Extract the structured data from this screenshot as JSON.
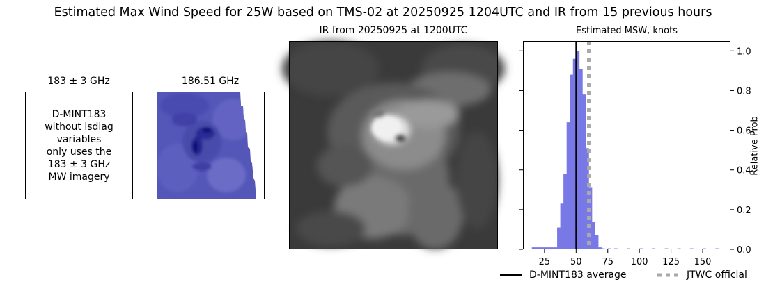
{
  "figure": {
    "title": "Estimated Max Wind Speed for 25W based on TMS-02 at 20250925 1204UTC and IR from 15 previous hours"
  },
  "panel_183": {
    "title": "183 ± 3 GHz",
    "note_lines": [
      "D-MINT183",
      "without lsdiag",
      "variables",
      "only uses the",
      "183 ± 3 GHz",
      "MW imagery"
    ]
  },
  "panel_186": {
    "title": "186.51 GHz"
  },
  "panel_ir": {
    "title": "IR from 20250925 at 1200UTC"
  },
  "chart_data": {
    "type": "bar",
    "title": "Estimated MSW, knots",
    "ylabel": "Relative Prob",
    "xlim": [
      8,
      172
    ],
    "ylim": [
      0,
      1.05
    ],
    "x_ticks": [
      25,
      50,
      75,
      100,
      125,
      150
    ],
    "y_ticks": [
      0.0,
      0.2,
      0.4,
      0.6,
      0.8,
      1.0
    ],
    "bin_width": 2.5,
    "bins": [
      {
        "x0": 15,
        "value": 0.01
      },
      {
        "x0": 17.5,
        "value": 0.01
      },
      {
        "x0": 20,
        "value": 0.01
      },
      {
        "x0": 22.5,
        "value": 0.01
      },
      {
        "x0": 25,
        "value": 0.01
      },
      {
        "x0": 27.5,
        "value": 0.01
      },
      {
        "x0": 30,
        "value": 0.01
      },
      {
        "x0": 32.5,
        "value": 0.01
      },
      {
        "x0": 35,
        "value": 0.11
      },
      {
        "x0": 37.5,
        "value": 0.23
      },
      {
        "x0": 40,
        "value": 0.38
      },
      {
        "x0": 42.5,
        "value": 0.64
      },
      {
        "x0": 45,
        "value": 0.88
      },
      {
        "x0": 47.5,
        "value": 0.96
      },
      {
        "x0": 50,
        "value": 1.0
      },
      {
        "x0": 52.5,
        "value": 0.91
      },
      {
        "x0": 55,
        "value": 0.78
      },
      {
        "x0": 57.5,
        "value": 0.51
      },
      {
        "x0": 60,
        "value": 0.31
      },
      {
        "x0": 62.5,
        "value": 0.14
      },
      {
        "x0": 65,
        "value": 0.07
      },
      {
        "x0": 67.5,
        "value": 0.01
      },
      {
        "x0": 70,
        "value": 0.005
      },
      {
        "x0": 75,
        "value": 0.005
      },
      {
        "x0": 80,
        "value": 0.005
      },
      {
        "x0": 90,
        "value": 0.005
      },
      {
        "x0": 100,
        "value": 0.005
      },
      {
        "x0": 110,
        "value": 0.005
      },
      {
        "x0": 120,
        "value": 0.005
      },
      {
        "x0": 130,
        "value": 0.005
      },
      {
        "x0": 140,
        "value": 0.005
      },
      {
        "x0": 150,
        "value": 0.005
      },
      {
        "x0": 160,
        "value": 0.005
      }
    ],
    "average_line": {
      "x": 50,
      "label": "D-MINT183 average",
      "color": "#000000"
    },
    "official_line": {
      "x": 60,
      "label": "JTWC official",
      "color": "#a9a9a9"
    },
    "bar_color": "#7878e6",
    "grid": false,
    "legend_placement": "below-right"
  }
}
